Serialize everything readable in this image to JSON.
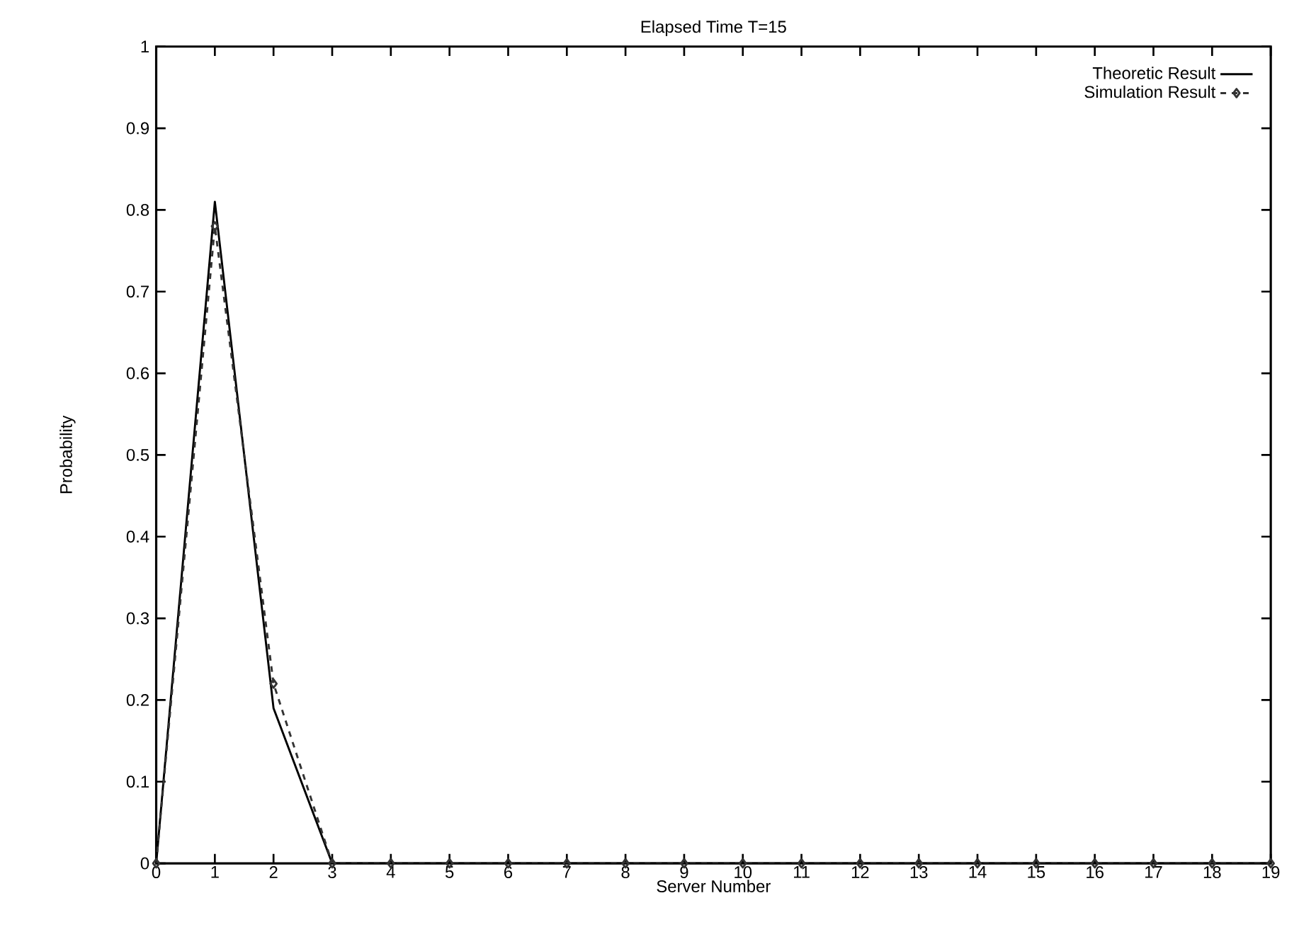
{
  "chart_data": {
    "type": "line",
    "title": "Elapsed Time T=15",
    "xlabel": "Server Number",
    "ylabel": "Probability",
    "x": [
      0,
      1,
      2,
      3,
      4,
      5,
      6,
      7,
      8,
      9,
      10,
      11,
      12,
      13,
      14,
      15,
      16,
      17,
      18,
      19
    ],
    "series": [
      {
        "name": "Theoretic Result",
        "color": "#000000",
        "marker": "none",
        "line_style": "solid",
        "values": [
          0,
          0.81,
          0.19,
          0,
          0,
          0,
          0,
          0,
          0,
          0,
          0,
          0,
          0,
          0,
          0,
          0,
          0,
          0,
          0,
          0
        ]
      },
      {
        "name": "Simulation Result",
        "color": "#333333",
        "marker": "diamond",
        "line_style": "dashed",
        "values": [
          0,
          0.78,
          0.22,
          0,
          0,
          0,
          0,
          0,
          0,
          0,
          0,
          0,
          0,
          0,
          0,
          0,
          0,
          0,
          0,
          0
        ]
      }
    ],
    "xlim": [
      0,
      19
    ],
    "xticks": [
      0,
      1,
      2,
      3,
      4,
      5,
      6,
      7,
      8,
      9,
      10,
      11,
      12,
      13,
      14,
      15,
      16,
      17,
      18,
      19
    ],
    "ylim": [
      0,
      1
    ],
    "yticks": [
      0,
      0.1,
      0.2,
      0.3,
      0.4,
      0.5,
      0.6,
      0.7,
      0.8,
      0.9,
      1
    ],
    "grid": false,
    "legend": "top right"
  }
}
